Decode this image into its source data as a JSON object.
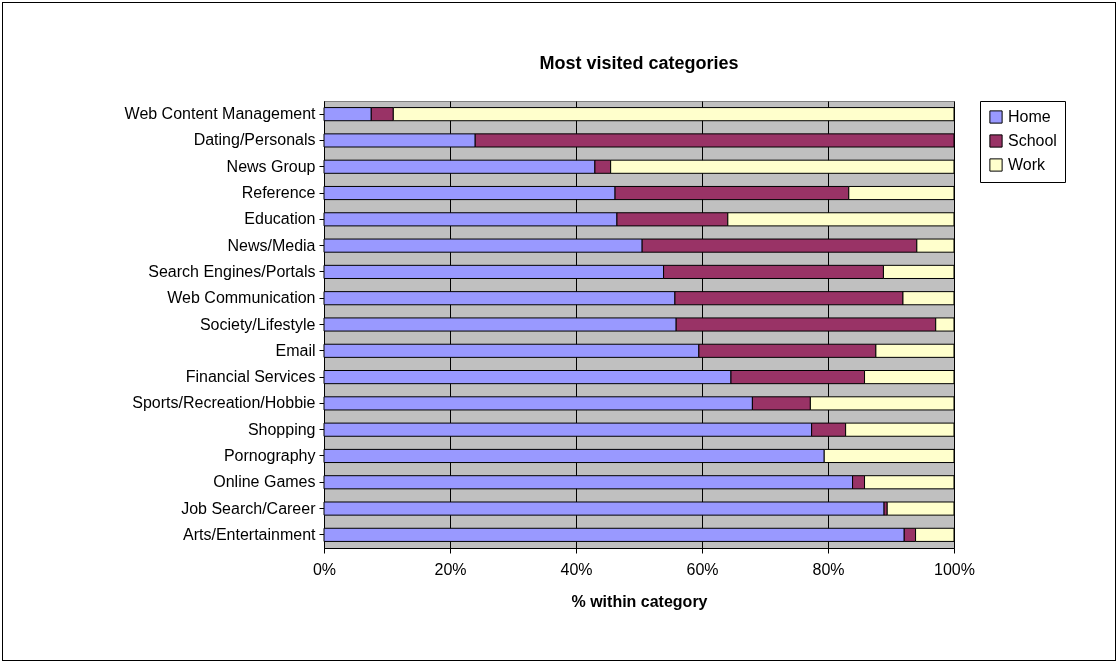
{
  "chart_data": {
    "type": "bar",
    "orientation": "horizontal",
    "stacked": true,
    "title": "Most visited categories",
    "xlabel": "% within category",
    "categories": [
      "Web Content Management",
      "Dating/Personals",
      "News Group",
      "Reference",
      "Education",
      "News/Media",
      "Search Engines/Portals",
      "Web Communication",
      "Society/Lifestyle",
      "Email",
      "Financial Services",
      "Sports/Recreation/Hobbie",
      "Shopping",
      "Pornography",
      "Online Games",
      "Job Search/Career",
      "Arts/Entertainment"
    ],
    "series": [
      {
        "name": "Home",
        "color": "#9999ff",
        "values": [
          7.5,
          24,
          43,
          46.2,
          46.5,
          50.5,
          53.9,
          55.7,
          55.9,
          59.5,
          64.6,
          68,
          77.4,
          79.4,
          83.9,
          88.9,
          92.1
        ]
      },
      {
        "name": "School",
        "color": "#993366",
        "values": [
          3.5,
          76,
          2.5,
          37.1,
          17.6,
          43.6,
          34.9,
          36.2,
          41.2,
          28.1,
          21.2,
          9.2,
          5.4,
          0,
          1.9,
          0.5,
          1.8
        ]
      },
      {
        "name": "Work",
        "color": "#ffffcc",
        "values": [
          89,
          0,
          54.5,
          16.7,
          35.9,
          5.9,
          11.2,
          8.1,
          2.9,
          12.4,
          14.2,
          22.8,
          17.2,
          20.6,
          14.2,
          10.6,
          6.1
        ]
      }
    ],
    "xlim": [
      0,
      100
    ],
    "xticks": [
      {
        "value": 0,
        "label": "0%"
      },
      {
        "value": 20,
        "label": "20%"
      },
      {
        "value": 40,
        "label": "40%"
      },
      {
        "value": 60,
        "label": "60%"
      },
      {
        "value": 80,
        "label": "80%"
      },
      {
        "value": 100,
        "label": "100%"
      }
    ],
    "grid": "x",
    "legend": "right"
  }
}
